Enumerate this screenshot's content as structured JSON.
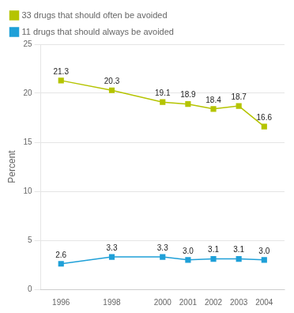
{
  "chart_data": {
    "type": "line",
    "x": [
      1996,
      1998,
      2000,
      2001,
      2002,
      2003,
      2004
    ],
    "series": [
      {
        "name": "33 drugs that should often be avoided",
        "color": "#b5c400",
        "marker": "square",
        "values": [
          21.3,
          20.3,
          19.1,
          18.9,
          18.4,
          18.7,
          16.6
        ]
      },
      {
        "name": "11 drugs that should always be avoided",
        "color": "#1fa0d8",
        "marker": "square",
        "values": [
          2.6,
          3.3,
          3.3,
          3.0,
          3.1,
          3.1,
          3.0
        ],
        "value_labels": [
          "2.6",
          "3.3",
          "3.3",
          "3.0",
          "3.1",
          "3.1",
          "3.0"
        ]
      }
    ],
    "y_label": "Percent",
    "xlim": [
      1995.2,
      2004.8
    ],
    "xticks": [
      1996,
      1998,
      2000,
      2001,
      2002,
      2003,
      2004
    ],
    "ylim": [
      0,
      25
    ],
    "yticks": [
      0,
      5,
      10,
      15,
      20,
      25
    ],
    "grid": "y",
    "legend": "upper left",
    "data_labels": true
  }
}
